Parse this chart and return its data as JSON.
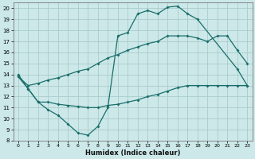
{
  "xlabel": "Humidex (Indice chaleur)",
  "bg_color": "#cce8e8",
  "grid_color": "#aacccc",
  "line_color": "#1a6e6a",
  "xlim": [
    -0.5,
    23.5
  ],
  "ylim": [
    8,
    20.5
  ],
  "xticks": [
    0,
    1,
    2,
    3,
    4,
    5,
    6,
    7,
    8,
    9,
    10,
    11,
    12,
    13,
    14,
    15,
    16,
    17,
    18,
    19,
    20,
    21,
    22,
    23
  ],
  "yticks": [
    8,
    9,
    10,
    11,
    12,
    13,
    14,
    15,
    16,
    17,
    18,
    19,
    20
  ],
  "line1_x": [
    0,
    1,
    2,
    3,
    4,
    5,
    6,
    7,
    8,
    9,
    10,
    11,
    12,
    13,
    14,
    15,
    16,
    17,
    18,
    22,
    23
  ],
  "line1_y": [
    14,
    12.7,
    11.5,
    10.8,
    10.3,
    9.5,
    8.7,
    8.5,
    9.3,
    11.0,
    17.5,
    17.8,
    19.5,
    19.8,
    19.5,
    20.1,
    20.2,
    19.5,
    19.0,
    14.5,
    13.0
  ],
  "line2_x": [
    0,
    1,
    2,
    3,
    4,
    5,
    6,
    7,
    8,
    9,
    10,
    11,
    12,
    13,
    14,
    15,
    16,
    17,
    18,
    19,
    20,
    21,
    22,
    23
  ],
  "line2_y": [
    13.8,
    13.0,
    13.2,
    13.5,
    13.7,
    14.0,
    14.3,
    14.5,
    15.0,
    15.5,
    15.8,
    16.2,
    16.5,
    16.8,
    17.0,
    17.5,
    17.5,
    17.5,
    17.3,
    17.0,
    17.5,
    17.5,
    16.2,
    15.0
  ],
  "line3_x": [
    0,
    1,
    2,
    3,
    4,
    5,
    6,
    7,
    8,
    9,
    10,
    11,
    12,
    13,
    14,
    15,
    16,
    17,
    18,
    19,
    20,
    21,
    22,
    23
  ],
  "line3_y": [
    13.8,
    12.7,
    11.5,
    11.5,
    11.3,
    11.2,
    11.1,
    11.0,
    11.0,
    11.2,
    11.3,
    11.5,
    11.7,
    12.0,
    12.2,
    12.5,
    12.8,
    13.0,
    13.0,
    13.0,
    13.0,
    13.0,
    13.0,
    13.0
  ]
}
